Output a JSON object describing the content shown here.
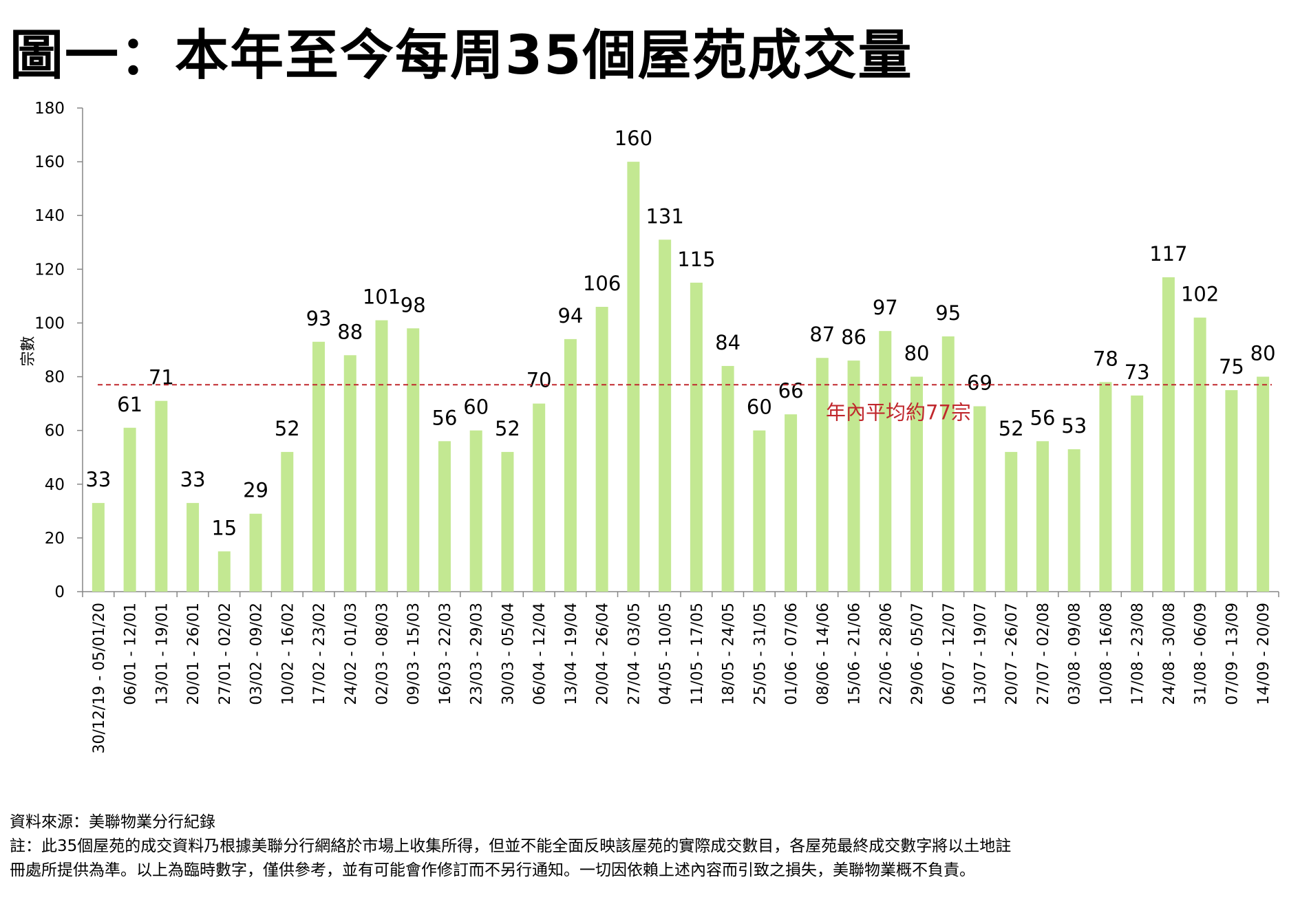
{
  "title": "圖一：本年至今每周35個屋苑成交量",
  "chart_data": {
    "type": "bar",
    "title": "",
    "ylabel": "宗數",
    "xlabel": "",
    "ylim": [
      0,
      180
    ],
    "yticks": [
      0,
      20,
      40,
      60,
      80,
      100,
      120,
      140,
      160,
      180
    ],
    "bar_color": "#c3e892",
    "categories": [
      "30/12/19 - 05/01/20",
      "06/01 - 12/01",
      "13/01 - 19/01",
      "20/01 - 26/01",
      "27/01 - 02/02",
      "03/02 - 09/02",
      "10/02 - 16/02",
      "17/02 - 23/02",
      "24/02 - 01/03",
      "02/03 - 08/03",
      "09/03 - 15/03",
      "16/03 - 22/03",
      "23/03 - 29/03",
      "30/03 - 05/04",
      "06/04 - 12/04",
      "13/04 - 19/04",
      "20/04 - 26/04",
      "27/04 - 03/05",
      "04/05 - 10/05",
      "11/05 - 17/05",
      "18/05 - 24/05",
      "25/05 - 31/05",
      "01/06 - 07/06",
      "08/06 - 14/06",
      "15/06 - 21/06",
      "22/06 - 28/06",
      "29/06 - 05/07",
      "06/07 - 12/07",
      "13/07 - 19/07",
      "20/07 - 26/07",
      "27/07 - 02/08",
      "03/08 - 09/08",
      "10/08 - 16/08",
      "17/08 - 23/08",
      "24/08 - 30/08",
      "31/08 - 06/09",
      "07/09 - 13/09",
      "14/09 - 20/09"
    ],
    "values": [
      33,
      61,
      71,
      33,
      15,
      29,
      52,
      93,
      88,
      101,
      98,
      56,
      60,
      52,
      70,
      94,
      106,
      160,
      131,
      115,
      84,
      60,
      66,
      87,
      86,
      97,
      80,
      95,
      69,
      52,
      56,
      53,
      78,
      73,
      117,
      102,
      75,
      80
    ],
    "average_line": {
      "value": 77,
      "label": "年內平均約77宗",
      "color": "#c0282d"
    }
  },
  "footer": {
    "source": "資料來源：美聯物業分行紀錄",
    "note_line1": "註：此35個屋苑的成交資料乃根據美聯分行網絡於市場上收集所得，但並不能全面反映該屋苑的實際成交數目，各屋苑最終成交數字將以土地註",
    "note_line2": "冊處所提供為準。以上為臨時數字，僅供參考，並有可能會作修訂而不另行通知。一切因依賴上述內容而引致之損失，美聯物業概不負責。"
  }
}
